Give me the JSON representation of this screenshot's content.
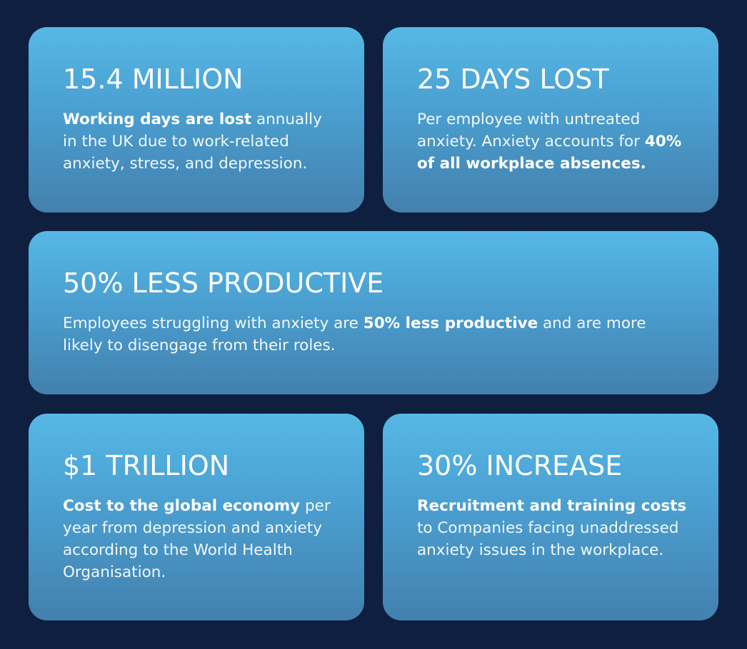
{
  "colors": {
    "background": "#0f1f40",
    "card_top": "#56b8e5",
    "card_bottom": "#4380ad",
    "text": "#ffffff"
  },
  "cards": [
    {
      "title": "15.4 MILLION",
      "segments": [
        {
          "text": "Working days are lost",
          "bold": true
        },
        {
          "text": " annually in the UK due to work-related anxiety, stress, and depression.",
          "bold": false
        }
      ]
    },
    {
      "title": "25 DAYS LOST",
      "segments": [
        {
          "text": "Per employee with untreated anxiety. Anxiety accounts for ",
          "bold": false
        },
        {
          "text": "40% of all workplace absences.",
          "bold": true
        }
      ]
    },
    {
      "title": "50% LESS PRODUCTIVE",
      "segments": [
        {
          "text": "Employees struggling with anxiety are ",
          "bold": false
        },
        {
          "text": "50% less productive",
          "bold": true
        },
        {
          "text": " and are more likely to disengage from their roles.",
          "bold": false
        }
      ]
    },
    {
      "title": "$1 TRILLION",
      "segments": [
        {
          "text": "Cost to the global economy",
          "bold": true
        },
        {
          "text": " per year from depression and anxiety according to the World Health Organisation.",
          "bold": false
        }
      ]
    },
    {
      "title": "30% INCREASE",
      "segments": [
        {
          "text": "Recruitment and training costs",
          "bold": true
        },
        {
          "text": " to Companies facing unaddressed anxiety issues in the workplace.",
          "bold": false
        }
      ]
    }
  ]
}
